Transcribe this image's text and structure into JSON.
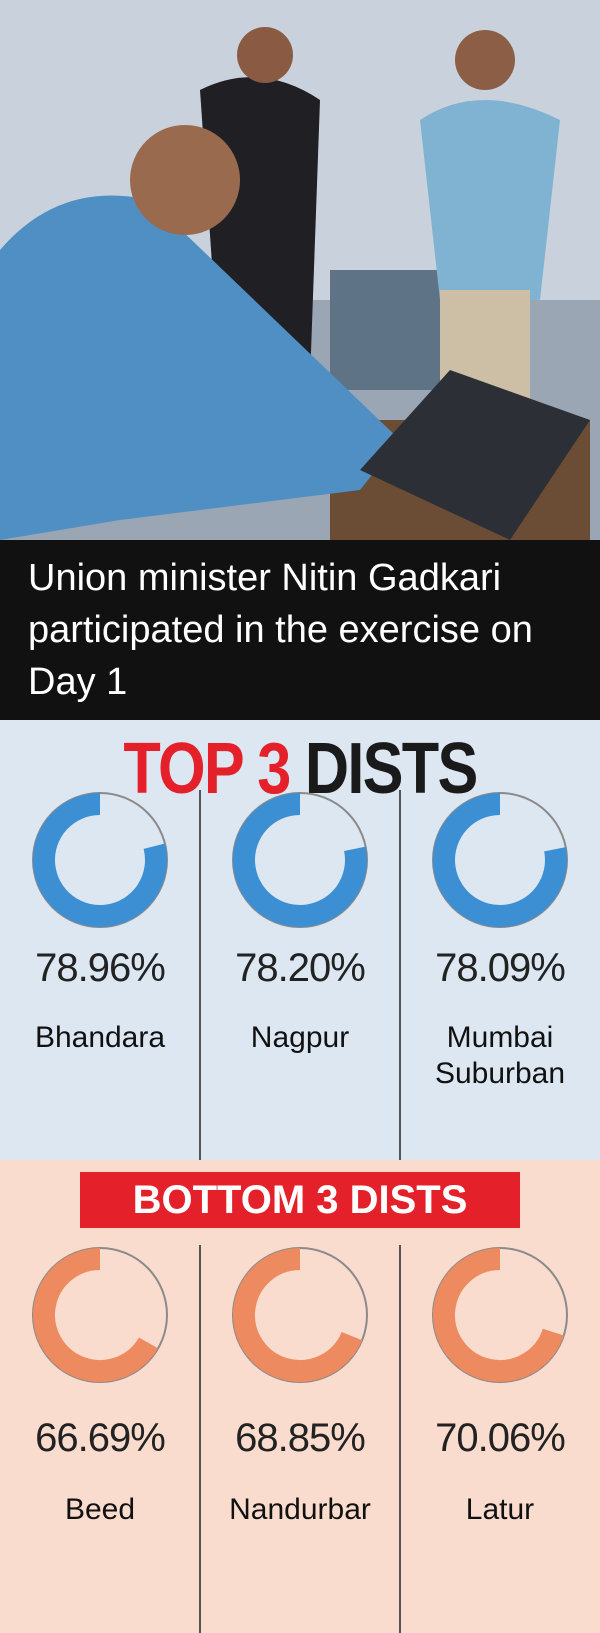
{
  "caption": "Union minister Nitin Gadkari participated in the exercise on Day 1",
  "chart_data": [
    {
      "type": "donut",
      "title": [
        "TOP 3",
        "DISTS"
      ],
      "categories": [
        "Bhandara",
        "Nagpur",
        "Mumbai Suburban"
      ],
      "values": [
        78.96,
        78.2,
        78.09
      ],
      "value_labels": [
        "78.96%",
        "78.20%",
        "78.09%"
      ],
      "color": "#3d8fd3"
    },
    {
      "type": "donut",
      "title": "BOTTOM 3 DISTS",
      "categories": [
        "Beed",
        "Nandurbar",
        "Latur"
      ],
      "values": [
        66.69,
        68.85,
        70.06
      ],
      "value_labels": [
        "66.69%",
        "68.85%",
        "70.06%"
      ],
      "color": "#ee8a5f"
    }
  ]
}
